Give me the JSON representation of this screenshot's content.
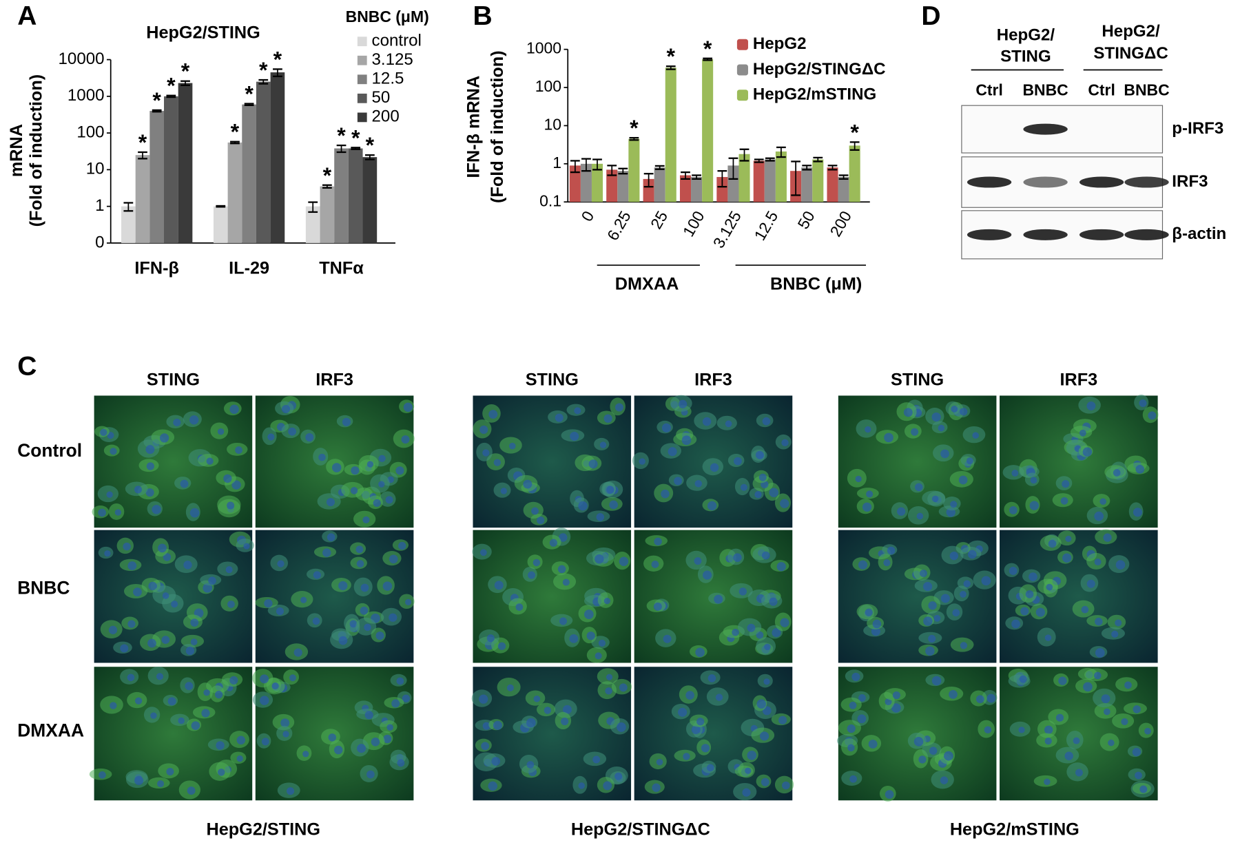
{
  "chart_data": [
    {
      "type": "bar",
      "panel": "A",
      "title": "HepG2/STING",
      "y_label": [
        "mRNA",
        "(Fold of induction)"
      ],
      "categories": [
        "IFN-β",
        "IL-29",
        "TNFα"
      ],
      "legend_title": "BNBC (μM)",
      "log_scale": true,
      "ylim": [
        0.1,
        10000
      ],
      "yticks": [
        {
          "value": 0.1,
          "label": "0"
        },
        1,
        10,
        100,
        1000,
        10000
      ],
      "series": [
        {
          "name": "control",
          "color": "#d9d9d9",
          "values": [
            1,
            1,
            1
          ],
          "errors": [
            0.25,
            0.03,
            0.3
          ],
          "significance": [
            null,
            null,
            null
          ]
        },
        {
          "name": "3.125",
          "color": "#a6a6a6",
          "values": [
            25,
            55,
            3.5
          ],
          "errors": [
            5,
            3,
            0.3
          ],
          "significance": [
            "*",
            "*",
            "*"
          ]
        },
        {
          "name": "12.5",
          "color": "#808080",
          "values": [
            400,
            600,
            38
          ],
          "errors": [
            20,
            30,
            8
          ],
          "significance": [
            "*",
            "*",
            "*"
          ]
        },
        {
          "name": "50",
          "color": "#595959",
          "values": [
            1000,
            2500,
            38
          ],
          "errors": [
            50,
            300,
            2
          ],
          "significance": [
            "*",
            "*",
            "*"
          ]
        },
        {
          "name": "200",
          "color": "#3a3a3a",
          "values": [
            2300,
            4500,
            22
          ],
          "errors": [
            300,
            1000,
            3
          ],
          "significance": [
            "*",
            "*",
            "*"
          ]
        }
      ]
    },
    {
      "type": "bar",
      "panel": "B",
      "y_label": [
        "IFN-β mRNA",
        "(Fold of induction)"
      ],
      "categories": [
        "0",
        "6.25",
        "25",
        "100",
        "3.125",
        "12.5",
        "50",
        "200"
      ],
      "group_labels": [
        "DMXAA",
        "BNBC (μM)"
      ],
      "log_scale": true,
      "ylim": [
        0.1,
        1000
      ],
      "yticks": [
        0.1,
        1,
        10,
        100,
        1000
      ],
      "series": [
        {
          "name": "HepG2",
          "color": "#c0504d",
          "values": [
            0.9,
            0.7,
            0.4,
            0.5,
            0.45,
            1.2,
            0.65,
            0.8
          ],
          "errors": [
            0.3,
            0.2,
            0.15,
            0.1,
            0.2,
            0.1,
            0.5,
            0.1
          ],
          "significance": [
            null,
            null,
            null,
            null,
            null,
            null,
            null,
            null
          ]
        },
        {
          "name": "HepG2/STINGΔC",
          "color": "#8c8c8c",
          "values": [
            1.0,
            0.65,
            0.8,
            0.45,
            0.9,
            1.3,
            0.8,
            0.45
          ],
          "errors": [
            0.35,
            0.1,
            0.08,
            0.05,
            0.5,
            0.1,
            0.1,
            0.05
          ],
          "significance": [
            null,
            null,
            null,
            null,
            null,
            null,
            null,
            null
          ]
        },
        {
          "name": "HepG2/mSTING",
          "color": "#9bbb59",
          "values": [
            1.0,
            4.5,
            330,
            550,
            1.8,
            2.1,
            1.3,
            3.0
          ],
          "errors": [
            0.3,
            0.3,
            30,
            30,
            0.6,
            0.6,
            0.15,
            0.7
          ],
          "significance": [
            null,
            "*",
            "*",
            "*",
            null,
            null,
            null,
            "*"
          ]
        }
      ]
    }
  ],
  "western_blot": {
    "panel": "D",
    "groups": [
      [
        "HepG2/",
        "STING"
      ],
      [
        "HepG2/",
        "STINGΔC"
      ]
    ],
    "lanes": [
      "Ctrl",
      "BNBC",
      "Ctrl",
      "BNBC"
    ],
    "rows": [
      "p-IRF3",
      "IRF3",
      "β-actin"
    ]
  },
  "microscopy": {
    "panel": "C",
    "columns": [
      "STING",
      "IRF3"
    ],
    "rows": [
      "Control",
      "BNBC",
      "DMXAA"
    ],
    "cell_lines": [
      "HepG2/STING",
      "HepG2/STINGΔC",
      "HepG2/mSTING"
    ]
  }
}
